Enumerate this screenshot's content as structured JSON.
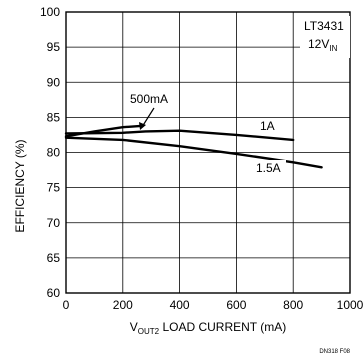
{
  "chart_data": {
    "type": "line",
    "xlabel_prefix": "V",
    "xlabel_sub": "OUT2",
    "xlabel_rest": " LOAD CURRENT (mA)",
    "ylabel": "EFFICIENCY (%)",
    "xlim": [
      0,
      1000
    ],
    "ylim": [
      60,
      100
    ],
    "x_ticks": [
      0,
      200,
      400,
      600,
      800,
      1000
    ],
    "y_ticks": [
      60,
      65,
      70,
      75,
      80,
      85,
      90,
      95,
      100
    ],
    "grid": true,
    "series": [
      {
        "name": "500mA",
        "x": [
          0,
          100,
          200,
          270
        ],
        "y": [
          82.3,
          83.0,
          83.6,
          83.8
        ]
      },
      {
        "name": "1A",
        "x": [
          0,
          200,
          280,
          400,
          600,
          800
        ],
        "y": [
          82.7,
          82.8,
          83.0,
          83.1,
          82.5,
          81.8
        ]
      },
      {
        "name": "1.5A",
        "x": [
          0,
          200,
          400,
          600,
          800,
          900
        ],
        "y": [
          82.1,
          81.8,
          80.9,
          79.8,
          78.6,
          77.9
        ]
      }
    ],
    "annotations": {
      "device": "LT3431",
      "vin_prefix": "12V",
      "vin_sub": "IN"
    },
    "figure_id": "DN318 F08"
  }
}
